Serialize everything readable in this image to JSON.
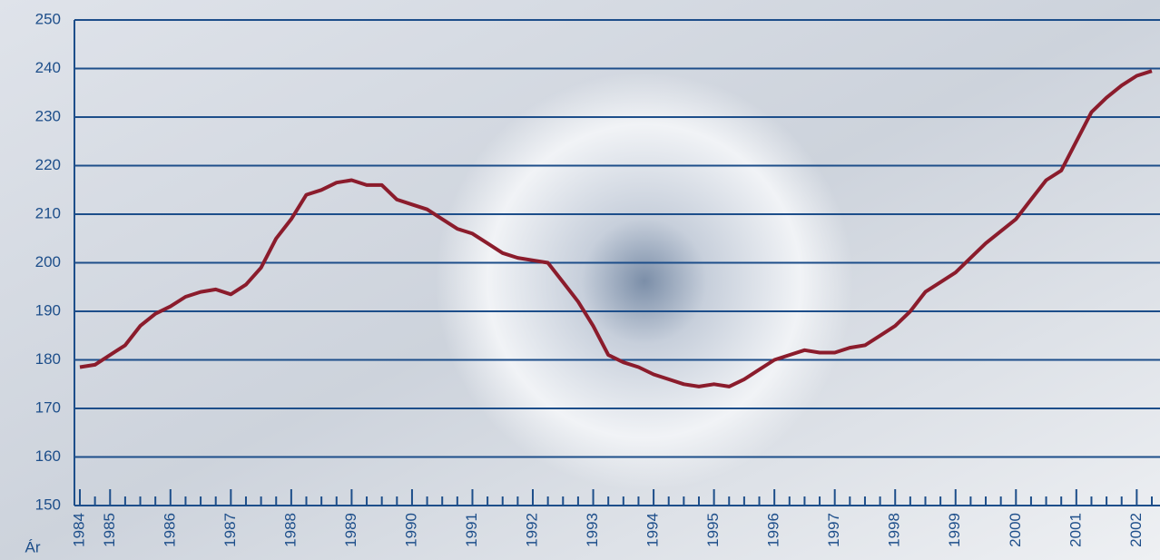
{
  "chart_data": {
    "type": "line",
    "x_label": "Ár",
    "categories": [
      "1984",
      null,
      "1985",
      null,
      null,
      null,
      "1986",
      null,
      null,
      null,
      "1987",
      null,
      null,
      null,
      "1988",
      null,
      null,
      null,
      "1989",
      null,
      null,
      null,
      "1990",
      null,
      null,
      null,
      "1991",
      null,
      null,
      null,
      "1992",
      null,
      null,
      null,
      "1993",
      null,
      null,
      null,
      "1994",
      null,
      null,
      null,
      "1995",
      null,
      null,
      null,
      "1996",
      null,
      null,
      null,
      "1997",
      null,
      null,
      null,
      "1998",
      null,
      null,
      null,
      "1999",
      null,
      null,
      null,
      "2000",
      null,
      null,
      null,
      "2001",
      null,
      null,
      null,
      "2002",
      null
    ],
    "series": [
      {
        "color": "#8b1c2c",
        "values": [
          178.5,
          179,
          181,
          183,
          187,
          189.5,
          191,
          193,
          194,
          194.5,
          193.5,
          195.5,
          199,
          205,
          209,
          214,
          215,
          216.5,
          217,
          216,
          216,
          213,
          212,
          211,
          209,
          207,
          206,
          204,
          202,
          201,
          200.5,
          200,
          196,
          192,
          187,
          181,
          179.5,
          178.5,
          177,
          176,
          175,
          174.5,
          175,
          174.5,
          176,
          178,
          180,
          181,
          182,
          181.5,
          181.5,
          182.5,
          183,
          185,
          187,
          190,
          194,
          196,
          198,
          201,
          204,
          206.5,
          209,
          213,
          217,
          219,
          225,
          231,
          234,
          236.5,
          238.5,
          239.5
        ]
      }
    ],
    "ylim": [
      150,
      250
    ],
    "yticks": [
      150,
      160,
      170,
      180,
      190,
      200,
      210,
      220,
      230,
      240,
      250
    ],
    "grid": true
  }
}
